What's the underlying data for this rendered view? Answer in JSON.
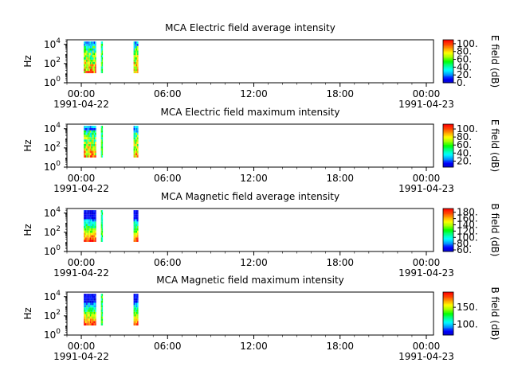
{
  "figure": {
    "colorscale": [
      "#0000c8",
      "#0000ff",
      "#00a0ff",
      "#00ffff",
      "#00ff90",
      "#00ff00",
      "#a0ff00",
      "#ffff00",
      "#ffa000",
      "#ff4000",
      "#ff0000"
    ]
  },
  "chart_data": [
    {
      "type": "heatmap",
      "title": "MCA  Electric field average intensity",
      "xlabel": "",
      "ylabel": "Hz",
      "x_start": "1991-04-22 00:00",
      "x_end": "1991-04-23 00:00",
      "xlim": [
        "1991-04-21 23:00",
        "1991-04-23 00:30"
      ],
      "x_ticks": [
        "00:00",
        "06:00",
        "12:00",
        "18:00",
        "00:00"
      ],
      "x_date_labels": [
        "1991-04-22",
        "1991-04-23"
      ],
      "y_scale": "log",
      "ylim": [
        1,
        30000
      ],
      "y_ticks": [
        "10^0",
        "10^2",
        "10^4"
      ],
      "colorbar_label": "E field (dB)",
      "colorbar_range": [
        0,
        110
      ],
      "colorbar_ticks": [
        "0.",
        "20.",
        "40.",
        "60.",
        "80.",
        "100."
      ],
      "data_intervals": [
        [
          "00:10",
          "01:02"
        ],
        [
          "01:22",
          "01:30"
        ],
        [
          "03:38",
          "03:58"
        ]
      ],
      "grid": false
    },
    {
      "type": "heatmap",
      "title": "MCA  Electric field maximum intensity",
      "xlabel": "",
      "ylabel": "Hz",
      "x_start": "1991-04-22 00:00",
      "x_end": "1991-04-23 00:00",
      "xlim": [
        "1991-04-21 23:00",
        "1991-04-23 00:30"
      ],
      "x_ticks": [
        "00:00",
        "06:00",
        "12:00",
        "18:00",
        "00:00"
      ],
      "x_date_labels": [
        "1991-04-22",
        "1991-04-23"
      ],
      "y_scale": "log",
      "ylim": [
        1,
        30000
      ],
      "y_ticks": [
        "10^0",
        "10^2",
        "10^4"
      ],
      "colorbar_label": "E field (dB)",
      "colorbar_range": [
        5,
        112
      ],
      "colorbar_ticks": [
        "20.",
        "40.",
        "60.",
        "80.",
        "100."
      ],
      "data_intervals": [
        [
          "00:10",
          "01:02"
        ],
        [
          "01:22",
          "01:30"
        ],
        [
          "03:38",
          "03:58"
        ]
      ],
      "grid": false
    },
    {
      "type": "heatmap",
      "title": "MCA  Magnetic field average intensity",
      "xlabel": "",
      "ylabel": "Hz",
      "x_start": "1991-04-22 00:00",
      "x_end": "1991-04-23 00:00",
      "xlim": [
        "1991-04-21 23:00",
        "1991-04-23 00:30"
      ],
      "x_ticks": [
        "00:00",
        "06:00",
        "12:00",
        "18:00",
        "00:00"
      ],
      "x_date_labels": [
        "1991-04-22",
        "1991-04-23"
      ],
      "y_scale": "log",
      "ylim": [
        1,
        30000
      ],
      "y_ticks": [
        "10^0",
        "10^2",
        "10^4"
      ],
      "colorbar_label": "B field (dB)",
      "colorbar_range": [
        55,
        192
      ],
      "colorbar_ticks": [
        "60.",
        "80.",
        "100.",
        "120.",
        "140.",
        "160.",
        "180."
      ],
      "data_intervals": [
        [
          "00:10",
          "01:02"
        ],
        [
          "01:22",
          "01:30"
        ],
        [
          "03:38",
          "03:58"
        ]
      ],
      "grid": false
    },
    {
      "type": "heatmap",
      "title": "MCA  Magnetic field maximum intensity",
      "xlabel": "",
      "ylabel": "Hz",
      "x_start": "1991-04-22 00:00",
      "x_end": "1991-04-23 00:00",
      "xlim": [
        "1991-04-21 23:00",
        "1991-04-23 00:30"
      ],
      "x_ticks": [
        "00:00",
        "06:00",
        "12:00",
        "18:00",
        "00:00"
      ],
      "x_date_labels": [
        "1991-04-22",
        "1991-04-23"
      ],
      "y_scale": "log",
      "ylim": [
        1,
        30000
      ],
      "y_ticks": [
        "10^0",
        "10^2",
        "10^4"
      ],
      "colorbar_label": "B field (dB)",
      "colorbar_range": [
        68,
        195
      ],
      "colorbar_ticks": [
        "100.",
        "150."
      ],
      "data_intervals": [
        [
          "00:10",
          "01:02"
        ],
        [
          "01:22",
          "01:30"
        ],
        [
          "03:38",
          "03:58"
        ]
      ],
      "grid": false
    }
  ]
}
